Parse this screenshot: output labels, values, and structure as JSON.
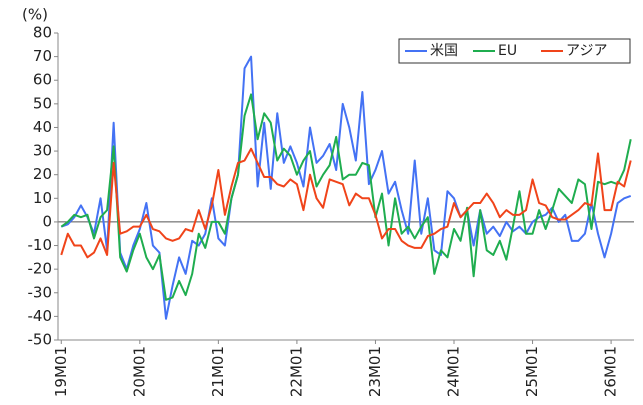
{
  "chart_data": {
    "type": "line",
    "y_label": "(%)",
    "categories": [
      "19M01",
      null,
      null,
      null,
      null,
      null,
      null,
      null,
      null,
      null,
      null,
      null,
      "20M01",
      null,
      null,
      null,
      null,
      null,
      null,
      null,
      null,
      null,
      null,
      null,
      "21M01",
      null,
      null,
      null,
      null,
      null,
      null,
      null,
      null,
      null,
      null,
      null,
      "22M01",
      null,
      null,
      null,
      null,
      null,
      null,
      null,
      null,
      null,
      null,
      null,
      "23M01",
      null,
      null,
      null,
      null,
      null,
      null,
      null,
      null,
      null,
      null,
      null,
      "24M01",
      null,
      null,
      null,
      null,
      null,
      null,
      null,
      null,
      null,
      null,
      null,
      "25M01",
      null,
      null,
      null,
      null,
      null,
      null,
      null,
      null,
      null,
      null,
      null,
      "26M01",
      null,
      null,
      null
    ],
    "series": [
      {
        "name": "米国",
        "color": "#4472f4",
        "values": [
          -2,
          -1,
          2,
          7,
          2,
          -5,
          10,
          -12,
          42,
          -13,
          -20,
          -10,
          -3,
          8,
          -10,
          -13,
          -41,
          -27,
          -15,
          -22,
          -8,
          -10,
          -5,
          10,
          -7,
          -10,
          10,
          20,
          65,
          70,
          15,
          42,
          14,
          46,
          25,
          32,
          25,
          15,
          40,
          25,
          28,
          33,
          22,
          50,
          40,
          26,
          55,
          16,
          22,
          30,
          12,
          17,
          5,
          -5,
          26,
          -5,
          10,
          -12,
          -14,
          13,
          10,
          2,
          5,
          -10,
          5,
          -5,
          -2,
          -6,
          0,
          -4,
          -2,
          -5,
          0,
          2,
          3,
          6,
          0,
          3,
          -8,
          -8,
          -5,
          8,
          -5,
          -15,
          -5,
          8,
          10,
          11
        ]
      },
      {
        "name": "EU",
        "color": "#1fad4f",
        "values": [
          -2,
          0,
          3,
          2,
          3,
          -7,
          2,
          5,
          32,
          -15,
          -21,
          -12,
          -5,
          -15,
          -20,
          -14,
          -33,
          -32,
          -25,
          -31,
          -22,
          -5,
          -11,
          0,
          0,
          -5,
          10,
          20,
          45,
          54,
          35,
          46,
          42,
          26,
          31,
          28,
          20,
          26,
          30,
          15,
          20,
          24,
          36,
          18,
          20,
          20,
          25,
          24,
          2,
          12,
          -10,
          10,
          -5,
          -2,
          -7,
          -2,
          2,
          -22,
          -12,
          -15,
          -3,
          -8,
          6,
          -23,
          5,
          -12,
          -14,
          -8,
          -16,
          -2,
          13,
          -5,
          -5,
          5,
          -3,
          5,
          14,
          11,
          8,
          18,
          16,
          -3,
          17,
          16,
          17,
          16,
          22,
          35
        ]
      },
      {
        "name": "アジア",
        "color": "#f0441a",
        "values": [
          -14,
          -5,
          -10,
          -10,
          -15,
          -13,
          -7,
          -14,
          25,
          -5,
          -4,
          -2,
          -2,
          3,
          -3,
          -4,
          -7,
          -8,
          -7,
          -3,
          -4,
          5,
          -3,
          7,
          22,
          3,
          15,
          25,
          26,
          31,
          25,
          19,
          19,
          16,
          15,
          18,
          16,
          5,
          20,
          10,
          6,
          18,
          17,
          16,
          7,
          12,
          10,
          10,
          3,
          -7,
          -3,
          -3,
          -8,
          -10,
          -11,
          -11,
          -6,
          -5,
          -3,
          -2,
          8,
          2,
          5,
          8,
          8,
          12,
          8,
          2,
          5,
          3,
          3,
          5,
          18,
          8,
          7,
          2,
          1,
          1,
          3,
          5,
          8,
          7,
          29,
          5,
          5,
          17,
          15,
          26
        ]
      }
    ],
    "ylim": [
      -50,
      80
    ],
    "yticks": [
      -50,
      -40,
      -30,
      -20,
      -10,
      0,
      10,
      20,
      30,
      40,
      50,
      60,
      70,
      80
    ],
    "legend": "top-right"
  }
}
